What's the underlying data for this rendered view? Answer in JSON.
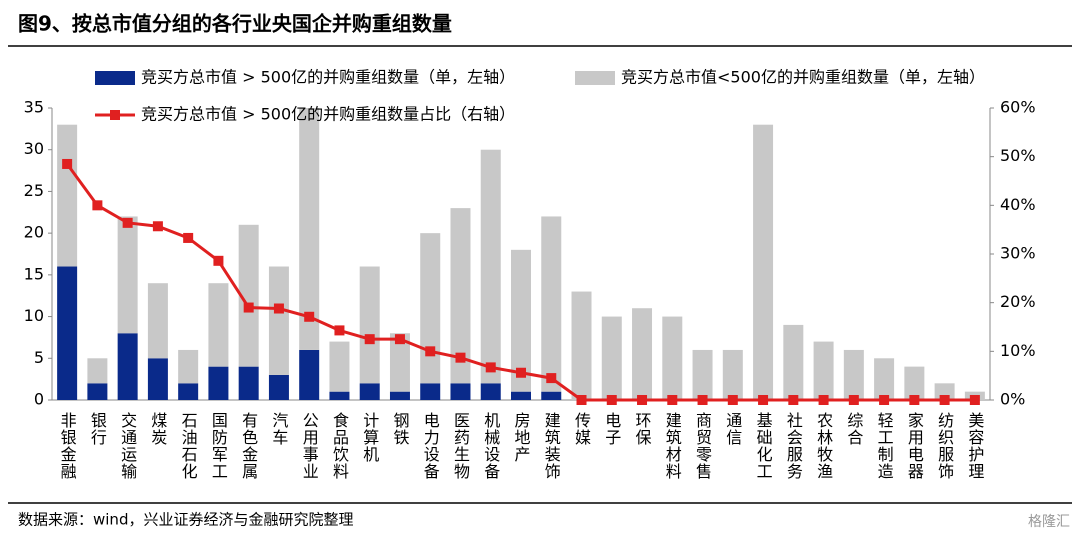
{
  "chart_data": {
    "type": "bar",
    "title": "图9、按总市值分组的各行业央国企并购重组数量",
    "source": "数据来源：wind，兴业证券经济与金融研究院整理",
    "watermark": "格隆汇",
    "categories": [
      "非银金融",
      "银行",
      "交通运输",
      "煤炭",
      "石油石化",
      "国防军工",
      "有色金属",
      "汽车",
      "公用事业",
      "食品饮料",
      "计算机",
      "钢铁",
      "电力设备",
      "医药生物",
      "机械设备",
      "房地产",
      "建筑装饰",
      "传媒",
      "电子",
      "环保",
      "建筑材料",
      "商贸零售",
      "通信",
      "基础化工",
      "社会服务",
      "农林牧渔",
      "综合",
      "轻工制造",
      "家用电器",
      "纺织服饰",
      "美容护理"
    ],
    "series": [
      {
        "name": "竞买方总市值 > 500亿的并购重组数量（单，左轴）",
        "color": "#0a2a8a",
        "type": "bar",
        "values": [
          16,
          2,
          8,
          5,
          2,
          4,
          4,
          3,
          6,
          1,
          2,
          1,
          2,
          2,
          2,
          1,
          1,
          0,
          0,
          0,
          0,
          0,
          0,
          0,
          0,
          0,
          0,
          0,
          0,
          0,
          0
        ]
      },
      {
        "name": "竞买方总市值<500亿的并购重组数量（单，左轴）",
        "color": "#c8c8c8",
        "type": "bar",
        "values": [
          17,
          3,
          14,
          9,
          4,
          10,
          17,
          13,
          29,
          6,
          14,
          7,
          18,
          21,
          28,
          17,
          21,
          13,
          10,
          11,
          10,
          6,
          6,
          33,
          9,
          7,
          6,
          5,
          4,
          2,
          1
        ]
      },
      {
        "name": "竞买方总市值 > 500亿的并购重组数量占比（右轴）",
        "color": "#e02020",
        "type": "line",
        "axis": "y2",
        "values": [
          48.5,
          40,
          36.4,
          35.7,
          33.3,
          28.6,
          19,
          18.8,
          17.1,
          14.3,
          12.5,
          12.5,
          10,
          8.7,
          6.7,
          5.6,
          4.5,
          0,
          0,
          0,
          0,
          0,
          0,
          0,
          0,
          0,
          0,
          0,
          0,
          0,
          0
        ]
      }
    ],
    "ylim": [
      0,
      35
    ],
    "yticks": [
      0,
      5,
      10,
      15,
      20,
      25,
      30,
      35
    ],
    "y2lim": [
      0,
      60
    ],
    "y2ticks": [
      {
        "value": 0,
        "label": "0%"
      },
      {
        "value": 10,
        "label": "10%"
      },
      {
        "value": 20,
        "label": "20%"
      },
      {
        "value": 30,
        "label": "30%"
      },
      {
        "value": 40,
        "label": "40%"
      },
      {
        "value": 50,
        "label": "50%"
      },
      {
        "value": 60,
        "label": "60%"
      }
    ],
    "stacked": true
  }
}
